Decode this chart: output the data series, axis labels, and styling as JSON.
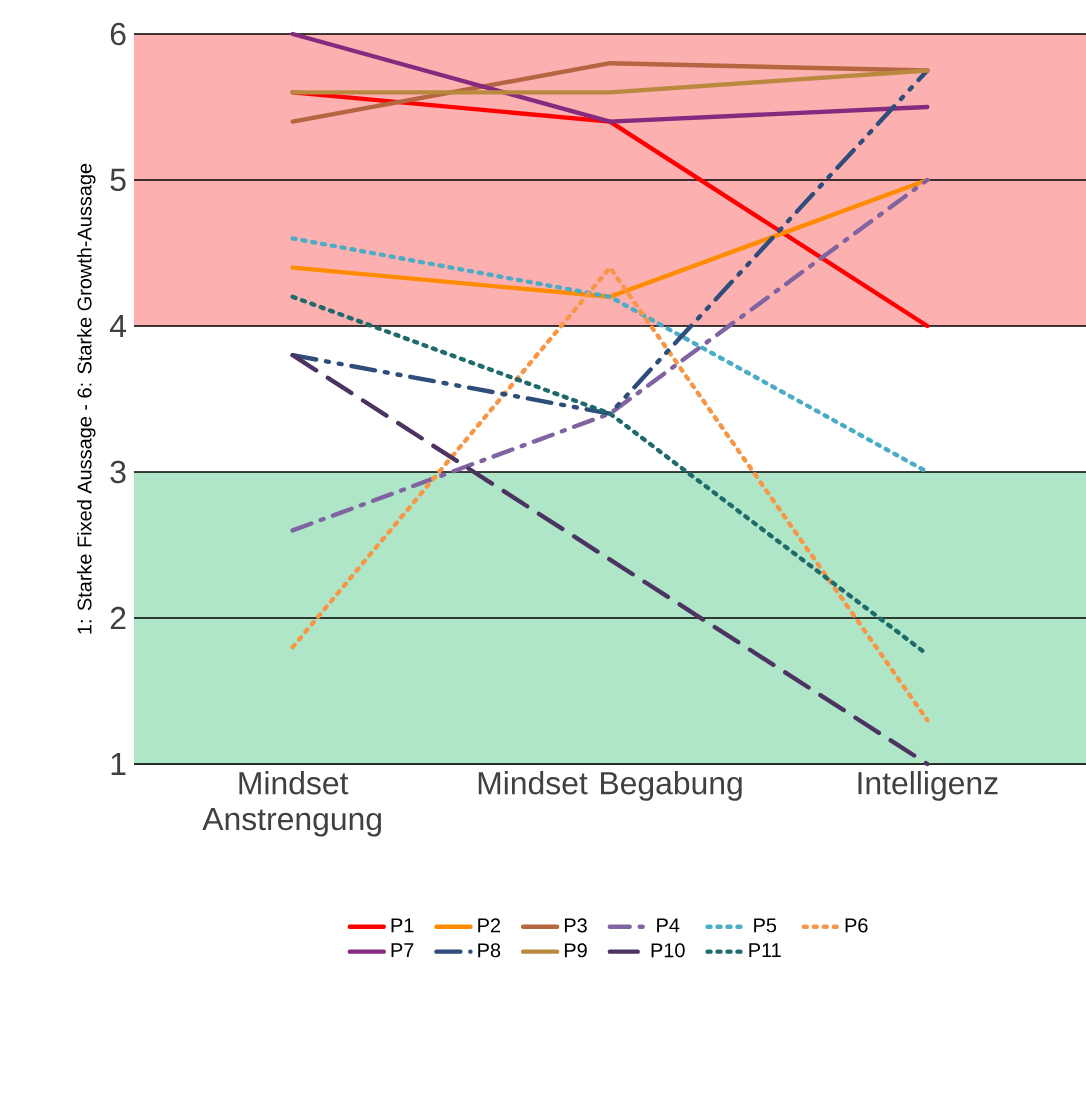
{
  "chart_data": {
    "type": "line",
    "ylabel": "1: Starke Fixed Aussage - 6: Starke Growth-Aussage",
    "categories": [
      "Mindset Anstrengung",
      "Mindset Begabung",
      "Intelligenz"
    ],
    "ylim": [
      1,
      6
    ],
    "yticks": [
      1,
      2,
      3,
      4,
      5,
      6
    ],
    "grid": "y",
    "legend": "bottom",
    "bands": [
      {
        "axis": "y",
        "from": 4,
        "to": 6,
        "color": "#fdb0b0"
      },
      {
        "axis": "y",
        "from": 1,
        "to": 3,
        "color": "#b0e6c8"
      }
    ],
    "series": [
      {
        "name": "P1",
        "color": "#ff0000",
        "line_style": "solid",
        "values": [
          5.6,
          5.4,
          4.0
        ]
      },
      {
        "name": "P2",
        "color": "#ff8c00",
        "line_style": "solid",
        "values": [
          4.4,
          4.2,
          5.0
        ]
      },
      {
        "name": "P3",
        "color": "#b5653f",
        "line_style": "solid",
        "values": [
          5.4,
          5.8,
          5.75
        ]
      },
      {
        "name": "P4",
        "color": "#8064a2",
        "line_style": "dashdot",
        "values": [
          2.6,
          3.4,
          5.0
        ]
      },
      {
        "name": "P5",
        "color": "#4bacc6",
        "line_style": "dotted",
        "values": [
          4.6,
          4.2,
          3.0
        ]
      },
      {
        "name": "P6",
        "color": "#f79646",
        "line_style": "dotted",
        "values": [
          1.8,
          4.4,
          1.3
        ]
      },
      {
        "name": "P7",
        "color": "#862a7f",
        "line_style": "solid",
        "values": [
          6.0,
          5.4,
          5.5
        ]
      },
      {
        "name": "P8",
        "color": "#2e4d7a",
        "line_style": "dashdotdot",
        "values": [
          3.8,
          3.4,
          5.75
        ]
      },
      {
        "name": "P9",
        "color": "#b8893e",
        "line_style": "solid",
        "values": [
          5.6,
          5.6,
          5.75
        ]
      },
      {
        "name": "P10",
        "color": "#4b3461",
        "line_style": "dashed",
        "values": [
          3.8,
          2.4,
          1.0
        ]
      },
      {
        "name": "P11",
        "color": "#1f6b6b",
        "line_style": "dotted",
        "values": [
          4.2,
          3.4,
          1.75
        ]
      }
    ]
  }
}
